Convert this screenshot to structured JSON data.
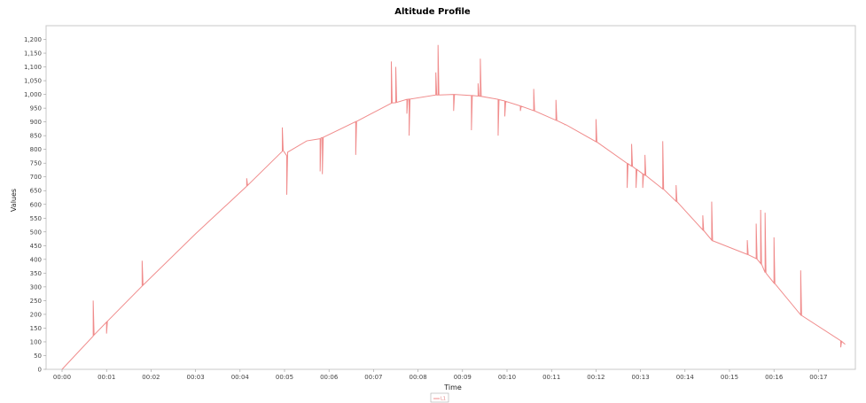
{
  "chart_data": {
    "type": "line",
    "title": "Altitude Profile",
    "xlabel": "Time",
    "ylabel": "Values",
    "xlim": [
      0,
      17.9
    ],
    "ylim": [
      0,
      1250
    ],
    "y_ticks": [
      0,
      50,
      100,
      150,
      200,
      250,
      300,
      350,
      400,
      450,
      500,
      550,
      600,
      650,
      700,
      750,
      800,
      850,
      900,
      950,
      1000,
      1050,
      1100,
      1150,
      1200
    ],
    "y_tick_labels": [
      "0",
      "50",
      "100",
      "150",
      "200",
      "250",
      "300",
      "350",
      "400",
      "450",
      "500",
      "550",
      "600",
      "650",
      "700",
      "750",
      "800",
      "850",
      "900",
      "950",
      "1,000",
      "1,050",
      "1,100",
      "1,150",
      "1,200"
    ],
    "x_ticks": [
      0,
      1,
      2,
      3,
      4,
      5,
      6,
      7,
      8,
      9,
      10,
      11,
      12,
      13,
      14,
      15,
      16,
      17
    ],
    "x_tick_labels": [
      "00:00",
      "00:01",
      "00:02",
      "00:03",
      "00:04",
      "00:05",
      "00:06",
      "00:07",
      "00:08",
      "00:09",
      "00:10",
      "00:11",
      "00:12",
      "00:13",
      "00:14",
      "00:15",
      "00:16",
      "00:17"
    ],
    "grid": false,
    "legend_position": "bottom-center",
    "series": [
      {
        "name": "L1",
        "color": "#f08c8c",
        "x": [
          0,
          0.7,
          0.7,
          0.72,
          0.72,
          1.0,
          1.0,
          1.02,
          1.02,
          1.8,
          1.8,
          1.82,
          1.82,
          3.0,
          4.15,
          4.15,
          4.17,
          4.17,
          4.95,
          4.95,
          4.97,
          4.97,
          5.05,
          5.05,
          5.07,
          5.07,
          5.5,
          5.8,
          5.8,
          5.82,
          5.82,
          5.85,
          5.85,
          5.87,
          5.87,
          6.6,
          6.6,
          6.62,
          6.62,
          7.4,
          7.4,
          7.42,
          7.42,
          7.5,
          7.5,
          7.52,
          7.52,
          7.75,
          7.75,
          7.77,
          7.77,
          7.8,
          7.8,
          7.82,
          7.82,
          8.4,
          8.4,
          8.42,
          8.42,
          8.45,
          8.45,
          8.47,
          8.47,
          8.8,
          8.8,
          8.82,
          8.82,
          9.2,
          9.2,
          9.22,
          9.22,
          9.35,
          9.35,
          9.37,
          9.37,
          9.4,
          9.4,
          9.42,
          9.42,
          9.8,
          9.8,
          9.82,
          9.82,
          9.95,
          9.95,
          9.97,
          9.97,
          10.3,
          10.3,
          10.32,
          10.32,
          10.6,
          10.6,
          10.62,
          10.62,
          11.1,
          11.1,
          11.12,
          11.12,
          11.3,
          11.3,
          11.32,
          11.32,
          12.0,
          12.0,
          12.02,
          12.02,
          12.7,
          12.7,
          12.72,
          12.72,
          12.8,
          12.8,
          12.82,
          12.82,
          12.9,
          12.9,
          12.92,
          12.92,
          13.05,
          13.05,
          13.07,
          13.07,
          13.1,
          13.1,
          13.12,
          13.12,
          13.5,
          13.5,
          13.52,
          13.52,
          13.8,
          13.8,
          13.82,
          13.82,
          14.4,
          14.4,
          14.42,
          14.42,
          14.6,
          14.6,
          14.62,
          14.62,
          15.4,
          15.4,
          15.42,
          15.42,
          15.6,
          15.6,
          15.62,
          15.62,
          15.7,
          15.7,
          15.72,
          15.72,
          15.8,
          15.8,
          15.82,
          15.82,
          16.0,
          16.0,
          16.02,
          16.02,
          16.6,
          16.6,
          16.62,
          16.62,
          17.5,
          17.5,
          17.52,
          17.52,
          17.6
        ],
        "y": [
          0,
          121,
          250,
          125,
          125,
          172,
          130,
          175,
          175,
          303,
          395,
          306,
          306,
          493,
          666,
          695,
          669,
          669,
          793,
          880,
          796,
          796,
          777,
          635,
          790,
          790,
          831,
          839,
          720,
          842,
          842,
          843,
          710,
          844,
          844,
          901,
          780,
          902,
          902,
          968,
          1120,
          969,
          969,
          970,
          1100,
          971,
          971,
          982,
          930,
          982,
          982,
          983,
          850,
          983,
          983,
          998,
          1080,
          998,
          998,
          998,
          1180,
          998,
          998,
          1000,
          940,
          1000,
          1000,
          996,
          870,
          996,
          996,
          994,
          1040,
          994,
          994,
          993,
          1130,
          993,
          993,
          982,
          850,
          981,
          981,
          976,
          920,
          975,
          975,
          958,
          940,
          957,
          957,
          941,
          1020,
          940,
          940,
          906,
          980,
          905,
          905,
          891,
          890,
          890,
          890,
          828,
          910,
          827,
          827,
          749,
          660,
          748,
          748,
          739,
          820,
          738,
          738,
          728,
          660,
          727,
          727,
          711,
          660,
          710,
          710,
          706,
          780,
          705,
          705,
          656,
          830,
          655,
          655,
          611,
          670,
          610,
          610,
          507,
          560,
          505,
          505,
          470,
          610,
          468,
          468,
          418,
          470,
          417,
          417,
          403,
          530,
          401,
          401,
          385,
          580,
          383,
          383,
          352,
          570,
          350,
          350,
          314,
          480,
          312,
          312,
          198,
          360,
          196,
          196,
          104,
          80,
          102,
          102,
          91
        ]
      }
    ]
  }
}
